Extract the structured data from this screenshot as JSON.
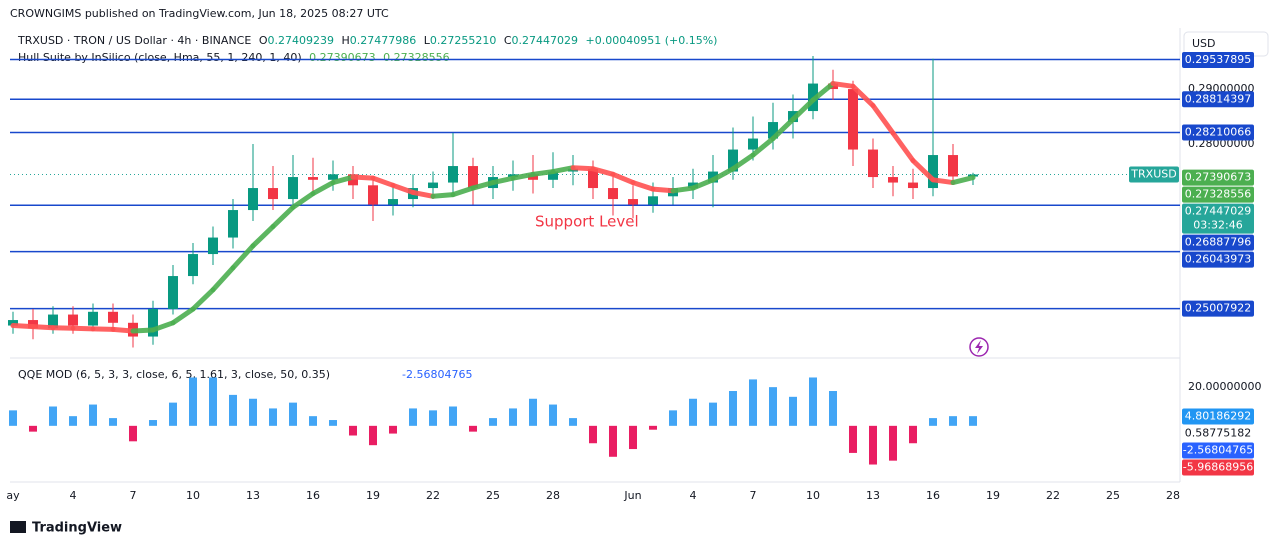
{
  "header": {
    "published": "CROWNGIMS published on TradingView.com, Jun 18, 2025 08:27 UTC",
    "brand": "TradingView",
    "currency": "USD"
  },
  "chart_data": {
    "type": "candlestick",
    "legend": {
      "symbol": "TRXUSD · TRON / US Dollar · 4h · BINANCE",
      "o": "O",
      "open": 0.27409239,
      "h": "H",
      "high": 0.27477986,
      "l": "L",
      "low": {
        "value": 0.2725521,
        "label": "0.27255210"
      },
      "c": "C",
      "close": 0.27447029,
      "change": "+0.00040951 (+0.15%)"
    },
    "symbol_tag": "TRXUSD",
    "countdown": "03:32:46",
    "current_price": 0.27447029,
    "current_color": "#26a69a",
    "x": [
      0,
      1,
      2,
      3,
      4,
      5,
      6,
      7,
      8,
      9,
      10,
      11,
      12,
      13,
      14,
      15,
      16,
      17,
      18,
      19,
      20,
      21,
      22,
      23,
      24,
      25,
      26,
      27,
      28,
      29,
      30,
      31,
      32,
      33,
      34,
      35,
      36,
      37,
      38,
      39,
      40,
      41,
      42,
      43,
      44,
      45,
      46,
      47,
      48
    ],
    "open": [
      0.247,
      0.248,
      0.2465,
      0.249,
      0.247,
      0.2495,
      0.2475,
      0.245,
      0.25,
      0.256,
      0.26,
      0.263,
      0.268,
      0.272,
      0.27,
      0.274,
      0.2735,
      0.2745,
      0.2725,
      0.269,
      0.27,
      0.272,
      0.273,
      0.276,
      0.272,
      0.274,
      0.2745,
      0.2735,
      0.275,
      0.2755,
      0.272,
      0.27,
      0.269,
      0.2705,
      0.272,
      0.273,
      0.275,
      0.279,
      0.281,
      0.284,
      0.286,
      0.291,
      0.29,
      0.279,
      0.274,
      0.273,
      0.272,
      0.278,
      0.27409239
    ],
    "high": [
      0.2495,
      0.25,
      0.2505,
      0.2505,
      0.251,
      0.251,
      0.249,
      0.2515,
      0.258,
      0.262,
      0.265,
      0.27,
      0.28,
      0.276,
      0.278,
      0.2775,
      0.277,
      0.276,
      0.274,
      0.2725,
      0.2745,
      0.275,
      0.282,
      0.2775,
      0.276,
      0.277,
      0.278,
      0.2785,
      0.278,
      0.277,
      0.274,
      0.2725,
      0.273,
      0.274,
      0.2755,
      0.278,
      0.283,
      0.285,
      0.2875,
      0.289,
      0.296,
      0.2935,
      0.2915,
      0.281,
      0.276,
      0.2755,
      0.2955,
      0.28,
      0.27477986
    ],
    "low": [
      0.2455,
      0.2445,
      0.2455,
      0.2455,
      0.246,
      0.246,
      0.243,
      0.2435,
      0.249,
      0.2545,
      0.258,
      0.261,
      0.266,
      0.268,
      0.269,
      0.271,
      0.2715,
      0.27,
      0.266,
      0.267,
      0.2685,
      0.27,
      0.271,
      0.269,
      0.27,
      0.2715,
      0.271,
      0.272,
      0.2725,
      0.27,
      0.267,
      0.2665,
      0.2675,
      0.269,
      0.27,
      0.2685,
      0.2735,
      0.277,
      0.279,
      0.281,
      0.2845,
      0.288,
      0.276,
      0.272,
      0.2705,
      0.27,
      0.2705,
      0.273,
      0.2725521
    ],
    "close": [
      0.248,
      0.2465,
      0.249,
      0.247,
      0.2495,
      0.2475,
      0.245,
      0.25,
      0.256,
      0.26,
      0.263,
      0.268,
      0.272,
      0.27,
      0.274,
      0.2735,
      0.2745,
      0.2725,
      0.269,
      0.27,
      0.272,
      0.273,
      0.276,
      0.272,
      0.274,
      0.2745,
      0.2735,
      0.275,
      0.2755,
      0.272,
      0.27,
      0.269,
      0.2705,
      0.272,
      0.273,
      0.275,
      0.279,
      0.281,
      0.284,
      0.286,
      0.291,
      0.29,
      0.279,
      0.274,
      0.273,
      0.272,
      0.278,
      0.2741,
      0.27447029
    ],
    "up_color": "#089981",
    "down_color": "#f23645",
    "hull": {
      "label": "Hull Suite by InSilico (close, Hma, 55, 1, 240, 1, 40)",
      "value1": 0.27390673,
      "value2": 0.27328556,
      "values": [
        0.247,
        0.2468,
        0.2466,
        0.2465,
        0.2464,
        0.2463,
        0.246,
        0.2462,
        0.2475,
        0.25,
        0.2535,
        0.2575,
        0.2615,
        0.265,
        0.2685,
        0.271,
        0.273,
        0.274,
        0.2738,
        0.2725,
        0.2712,
        0.2705,
        0.2708,
        0.272,
        0.273,
        0.2738,
        0.2745,
        0.275,
        0.2757,
        0.2755,
        0.2745,
        0.273,
        0.2718,
        0.2715,
        0.272,
        0.2735,
        0.2755,
        0.278,
        0.281,
        0.2845,
        0.288,
        0.291,
        0.2905,
        0.287,
        0.282,
        0.277,
        0.2735,
        0.273,
        0.27390673
      ],
      "up_color": "#4caf50",
      "down_color": "#ff5252"
    },
    "levels": {
      "values": [
        0.29537895,
        0.28814397,
        0.28210066,
        0.26887796,
        0.26043973,
        0.25007922
      ],
      "color": "#1848cc"
    },
    "annotation": "Support Level",
    "xlim": [
      -0.15,
      58.35
    ],
    "xticks": [
      {
        "value": 0,
        "label": "ay"
      },
      {
        "value": 3,
        "label": "4"
      },
      {
        "value": 6,
        "label": "7"
      },
      {
        "value": 9,
        "label": "10"
      },
      {
        "value": 12,
        "label": "13"
      },
      {
        "value": 15,
        "label": "16"
      },
      {
        "value": 18,
        "label": "19"
      },
      {
        "value": 21,
        "label": "22"
      },
      {
        "value": 24,
        "label": "25"
      },
      {
        "value": 27,
        "label": "28"
      },
      {
        "value": 31,
        "label": "Jun"
      },
      {
        "value": 34,
        "label": "4"
      },
      {
        "value": 37,
        "label": "7"
      },
      {
        "value": 40,
        "label": "10"
      },
      {
        "value": 43,
        "label": "13"
      },
      {
        "value": 46,
        "label": "16"
      },
      {
        "value": 49,
        "label": "19"
      },
      {
        "value": 52,
        "label": "22"
      },
      {
        "value": 55,
        "label": "25"
      },
      {
        "value": 58,
        "label": "28"
      }
    ],
    "ylim": [
      0.2411,
      0.3011
    ],
    "yticks": [
      {
        "value": 0.29,
        "label": "0.29000000"
      },
      {
        "value": 0.28,
        "label": "0.28000000"
      }
    ],
    "qqe": {
      "label": "QQE MOD (6, 5, 3, 3, close, 6, 5, 1.61, 3, close, 50, 0.35)",
      "value": -2.56804765,
      "values": [
        8,
        -3,
        10,
        5,
        11,
        4,
        -8,
        3,
        12,
        25,
        25,
        16,
        14,
        9,
        12,
        5,
        3,
        -5,
        -10,
        -4,
        9,
        8,
        10,
        -3,
        4,
        9,
        14,
        11,
        4,
        -9,
        -16,
        -12,
        -2,
        8,
        14,
        12,
        18,
        24,
        20,
        15,
        25,
        18,
        -14,
        -20,
        -18,
        -9,
        4,
        5,
        5
      ],
      "pos_color": "#42a5f5",
      "neg_color": "#e91e63",
      "ylim": [
        -28,
        33
      ],
      "yticks": [
        {
          "value": 20,
          "label": "20.00000000"
        }
      ],
      "markers": [
        {
          "value": 4.80186292,
          "color": "#2196f3"
        },
        {
          "value": 0.58775182,
          "color": "#ffffff"
        },
        {
          "value": -2.56804765,
          "color": "#2962ff"
        },
        {
          "value": -5.96868956,
          "color": "#f23645"
        }
      ]
    }
  }
}
